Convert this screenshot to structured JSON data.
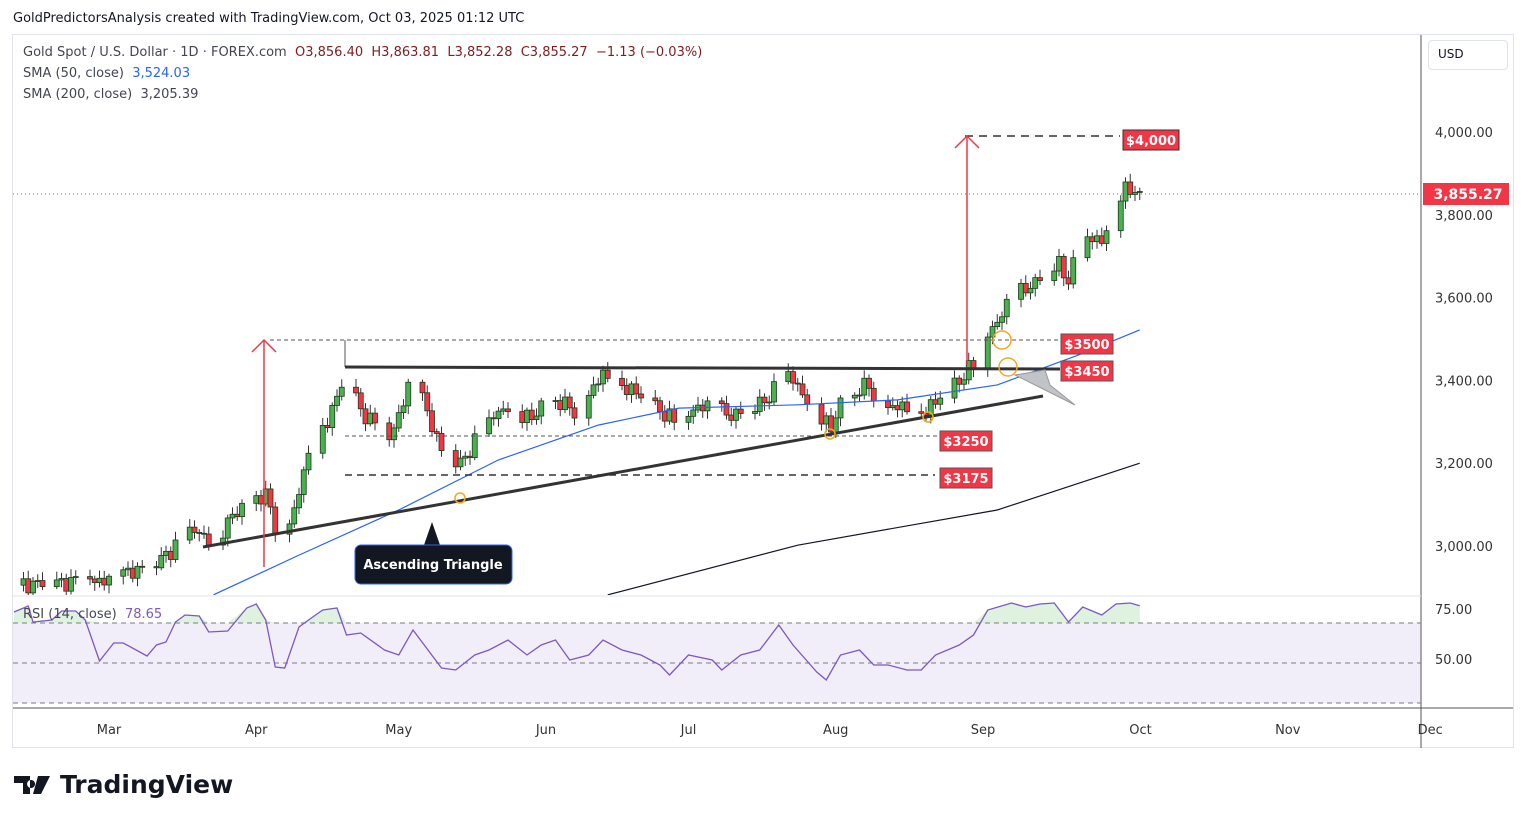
{
  "credit": "GoldPredictorsAnalysis created with TradingView.com, Oct 03, 2025 01:12 UTC",
  "legend": {
    "symbol": "Gold Spot / U.S. Dollar · 1D · FOREX.com",
    "open": "O3,856.40",
    "high": "H3,863.81",
    "low": "L3,852.28",
    "close": "C3,855.27",
    "change": "−1.13 (−0.03%)",
    "sma50_label": "SMA (50, close)",
    "sma50_value": "3,524.03",
    "sma200_label": "SMA (200, close)",
    "sma200_value": "3,205.39",
    "rsi_label": "RSI (14, close)",
    "rsi_value": "78.65"
  },
  "currency": "USD",
  "logo": "TradingView",
  "colors": {
    "up": "#4caf50",
    "down": "#f23645",
    "sma50": "#2962ff",
    "sma200": "#131722",
    "rsi": "#7e57c2",
    "tag": "#f23645"
  },
  "annotations": {
    "target": "$4,000",
    "l3500": "$3500",
    "l3450": "$3450",
    "l3250": "$3250",
    "l3175": "$3175",
    "pattern": "Ascending Triangle"
  },
  "chart_data": {
    "type": "candlestick",
    "title": "Gold Spot / U.S. Dollar · 1D",
    "x_unit": "calendar days from Mar 1 2025",
    "y_ticks": [
      "4,000.00",
      "3,800.00",
      "3,600.00",
      "3,400.00",
      "3,200.00",
      "3,000.00"
    ],
    "y_tick_values": [
      4000,
      3800,
      3600,
      3400,
      3200,
      3000
    ],
    "ylim": [
      2880,
      4150
    ],
    "last_price": "3,855.27",
    "x_ticks": [
      {
        "label": "Mar",
        "day": 0
      },
      {
        "label": "Apr",
        "day": 31
      },
      {
        "label": "May",
        "day": 61
      },
      {
        "label": "Jun",
        "day": 92
      },
      {
        "label": "Jul",
        "day": 122
      },
      {
        "label": "Aug",
        "day": 153
      },
      {
        "label": "Sep",
        "day": 184
      },
      {
        "label": "Oct",
        "day": 214
      },
      {
        "label": "Nov",
        "day": 245
      },
      {
        "label": "Dec",
        "day": 275
      }
    ],
    "close_path": [
      [
        -20,
        2906
      ],
      [
        0,
        2918
      ],
      [
        11,
        2966
      ],
      [
        17,
        3039
      ],
      [
        22,
        3014
      ],
      [
        29,
        3111
      ],
      [
        33,
        3123
      ],
      [
        36,
        3014
      ],
      [
        39,
        3087
      ],
      [
        42,
        3220
      ],
      [
        47,
        3328
      ],
      [
        50,
        3420
      ],
      [
        53,
        3328
      ],
      [
        59,
        3256
      ],
      [
        64,
        3413
      ],
      [
        70,
        3232
      ],
      [
        74,
        3196
      ],
      [
        79,
        3292
      ],
      [
        84,
        3340
      ],
      [
        89,
        3304
      ],
      [
        92,
        3364
      ],
      [
        98,
        3328
      ],
      [
        104,
        3413
      ],
      [
        110,
        3377
      ],
      [
        116,
        3328
      ],
      [
        120,
        3292
      ],
      [
        124,
        3340
      ],
      [
        131,
        3316
      ],
      [
        137,
        3340
      ],
      [
        143,
        3413
      ],
      [
        148,
        3340
      ],
      [
        152,
        3280
      ],
      [
        154,
        3352
      ],
      [
        160,
        3389
      ],
      [
        162,
        3340
      ],
      [
        172,
        3328
      ],
      [
        177,
        3377
      ],
      [
        182,
        3437
      ],
      [
        185,
        3510
      ],
      [
        190,
        3594
      ],
      [
        194,
        3630
      ],
      [
        200,
        3679
      ],
      [
        202,
        3643
      ],
      [
        205,
        3740
      ],
      [
        209,
        3740
      ],
      [
        212,
        3824
      ],
      [
        214,
        3860
      ],
      [
        217,
        3855
      ]
    ],
    "sma50": [
      [
        22,
        2882
      ],
      [
        40,
        2978
      ],
      [
        61,
        3087
      ],
      [
        82,
        3208
      ],
      [
        103,
        3292
      ],
      [
        120,
        3333
      ],
      [
        145,
        3341
      ],
      [
        166,
        3353
      ],
      [
        187,
        3389
      ],
      [
        204,
        3461
      ],
      [
        217,
        3522
      ]
    ],
    "sma200": [
      [
        105,
        2882
      ],
      [
        145,
        3002
      ],
      [
        187,
        3087
      ],
      [
        217,
        3200
      ]
    ],
    "rsi": {
      "levels": [
        70,
        50,
        30
      ],
      "y_ticks": [
        "75.00",
        "50.00"
      ],
      "y_tick_values": [
        75,
        50
      ],
      "values": [
        [
          -20,
          75.5
        ],
        [
          -17,
          78.5
        ],
        [
          -16,
          70.5
        ],
        [
          -12,
          71.5
        ],
        [
          -10,
          76
        ],
        [
          -7,
          76
        ],
        [
          -5,
          71.5
        ],
        [
          -2,
          51
        ],
        [
          1,
          60
        ],
        [
          3,
          60
        ],
        [
          8,
          53.5
        ],
        [
          10,
          59
        ],
        [
          12,
          60.5
        ],
        [
          14,
          70.5
        ],
        [
          16,
          74
        ],
        [
          19,
          73.5
        ],
        [
          21,
          65.5
        ],
        [
          25,
          66
        ],
        [
          29,
          77.5
        ],
        [
          31,
          79.5
        ],
        [
          33,
          71.5
        ],
        [
          35,
          48
        ],
        [
          37,
          47.5
        ],
        [
          40,
          68
        ],
        [
          42,
          71.5
        ],
        [
          45,
          76.5
        ],
        [
          48,
          77.5
        ],
        [
          50,
          64
        ],
        [
          53,
          65
        ],
        [
          58,
          56.5
        ],
        [
          61,
          54
        ],
        [
          64,
          66.5
        ],
        [
          70,
          47.5
        ],
        [
          73,
          46.5
        ],
        [
          77,
          54
        ],
        [
          80,
          56.5
        ],
        [
          84,
          61.5
        ],
        [
          88,
          54
        ],
        [
          91,
          59
        ],
        [
          94,
          61.5
        ],
        [
          97,
          51.5
        ],
        [
          101,
          54
        ],
        [
          104,
          61.5
        ],
        [
          108,
          56.5
        ],
        [
          112,
          54
        ],
        [
          116,
          49
        ],
        [
          118,
          44
        ],
        [
          122,
          54
        ],
        [
          127,
          51.5
        ],
        [
          129,
          46.5
        ],
        [
          133,
          54
        ],
        [
          137,
          56.5
        ],
        [
          141,
          69
        ],
        [
          144,
          59
        ],
        [
          149,
          45.5
        ],
        [
          151,
          41.5
        ],
        [
          154,
          54
        ],
        [
          158,
          56.5
        ],
        [
          161,
          49
        ],
        [
          164,
          49
        ],
        [
          168,
          46.5
        ],
        [
          171,
          46.5
        ],
        [
          174,
          54
        ],
        [
          179,
          59
        ],
        [
          182,
          64
        ],
        [
          185,
          76.5
        ],
        [
          190,
          80
        ],
        [
          193,
          78
        ],
        [
          196,
          79.5
        ],
        [
          199,
          80
        ],
        [
          202,
          70.5
        ],
        [
          205,
          78
        ],
        [
          209,
          74
        ],
        [
          212,
          79.5
        ],
        [
          215,
          80
        ],
        [
          217,
          78.65
        ]
      ]
    }
  }
}
